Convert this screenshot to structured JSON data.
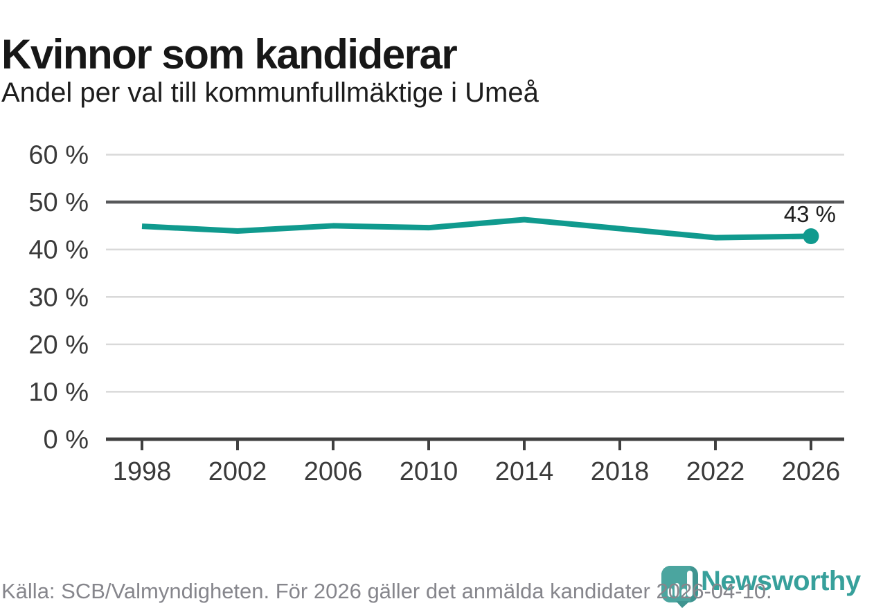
{
  "header": {
    "title": "Kvinnor som kandiderar",
    "subtitle": "Andel per val till kommunfullmäktige i Umeå"
  },
  "chart_data": {
    "type": "line",
    "title": "Kvinnor som kandiderar",
    "subtitle": "Andel per val till kommunfullmäktige i Umeå",
    "x": [
      1998,
      2002,
      2006,
      2010,
      2014,
      2018,
      2022,
      2026
    ],
    "xtick_labels": [
      "1998",
      "2002",
      "2006",
      "2010",
      "2014",
      "2018",
      "2022",
      "2026"
    ],
    "values": [
      44.9,
      43.9,
      45.0,
      44.6,
      46.3,
      44.4,
      42.5,
      42.8
    ],
    "unit": "%",
    "ylim": [
      0,
      60
    ],
    "ytick_step": 10,
    "ytick_labels": [
      "0 %",
      "10 %",
      "20 %",
      "30 %",
      "40 %",
      "50 %",
      "60 %"
    ],
    "reference_line": 50,
    "grid": "horizontal",
    "legend": "none",
    "end_point_label": "43 %",
    "end_point_marker": true
  },
  "colors": {
    "line": "#109a8e",
    "grid_light": "#d9d9d9",
    "grid_reference": "#57585a",
    "axis": "#404040",
    "tick_label": "#3a3a3a",
    "end_label": "#1f1f1f",
    "footer_text": "#86868c",
    "logo_teal": "#4ba59f",
    "logo_teal_dark": "#3f9490",
    "logo_bars": "#fdfdfd",
    "wordmark_teal": "#37a09b"
  },
  "footer": {
    "source": "Källa: SCB/Valmyndigheten. För 2026 gäller det anmälda kandidater 2026-04-10."
  },
  "branding": {
    "logo_icon": "newsworthy-speech-bubble-bar-chart-icon",
    "wordmark": "Newsworthy"
  }
}
